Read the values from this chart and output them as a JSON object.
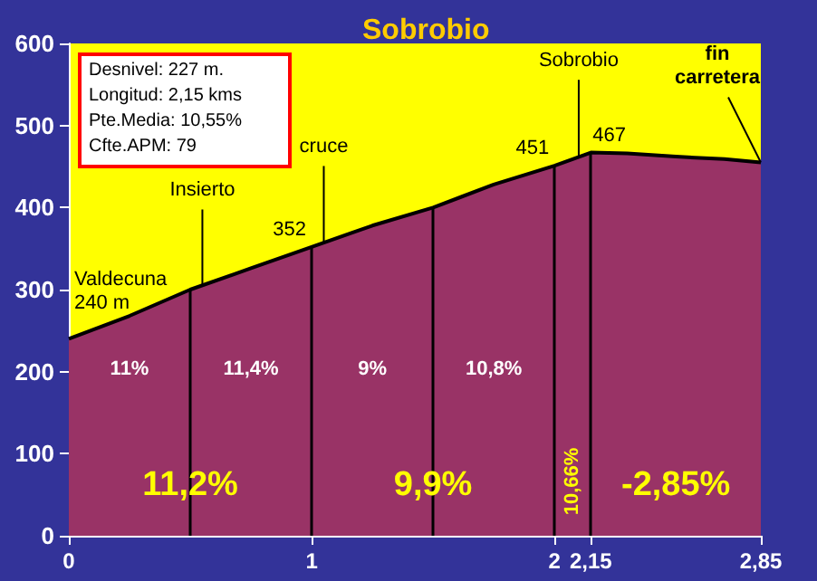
{
  "chart_data": {
    "type": "area",
    "title": "Sobrobio",
    "x": [
      0,
      0.25,
      0.5,
      0.75,
      1,
      1.25,
      1.5,
      1.75,
      2,
      2.15,
      2.3,
      2.5,
      2.7,
      2.85
    ],
    "values": [
      240,
      268,
      300,
      326,
      352,
      378,
      400,
      428,
      451,
      467,
      466,
      462,
      459,
      455
    ],
    "color": "#993366",
    "xlim": [
      0,
      2.85
    ],
    "xticks": [
      0,
      1,
      2,
      {
        "value": 2.15,
        "label": "2,15"
      },
      {
        "value": 2.85,
        "label": "2,85"
      }
    ],
    "ylim": [
      0,
      600
    ],
    "yticks": [
      0,
      100,
      200,
      300,
      400,
      500,
      600
    ],
    "ref_lines": [
      {
        "axis": "x",
        "value": 0.5,
        "color": "#000000"
      },
      {
        "axis": "x",
        "value": 1,
        "color": "#000000"
      },
      {
        "axis": "x",
        "value": 1.5,
        "color": "#000000"
      },
      {
        "axis": "x",
        "value": 2,
        "color": "#000000"
      },
      {
        "axis": "x",
        "value": 2.15,
        "color": "#000000"
      }
    ],
    "annotations": [
      "Desnivel: 227 m.",
      "Longitud: 2,15 kms",
      "Pte.Media: 10,55%",
      "Cfte.APM: 79",
      "11%",
      "11,4%",
      "9%",
      "10,8%",
      "11,2%",
      "9,9%",
      "10,66%",
      "-2,85%",
      {
        "text": "Valdecuna 240 m",
        "x": 0,
        "y": 240
      },
      {
        "text": "Insierto",
        "x": 0.55,
        "y": 305
      },
      {
        "text": "352",
        "x": 1,
        "y": 352
      },
      {
        "text": "cruce",
        "x": 1.05,
        "y": 358
      },
      {
        "text": "451",
        "x": 2,
        "y": 451
      },
      {
        "text": "Sobrobio",
        "x": 2.1,
        "y": 463
      },
      {
        "text": "467",
        "x": 2.15,
        "y": 467
      },
      {
        "text": "fin carretera",
        "x": 2.85,
        "y": 455
      }
    ]
  }
}
